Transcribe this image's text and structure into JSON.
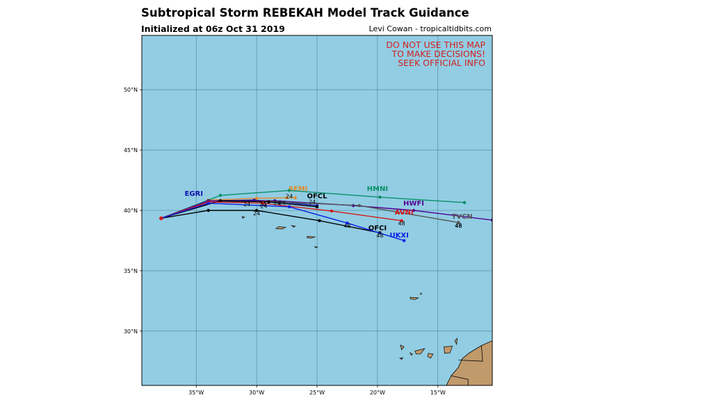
{
  "header": {
    "title": "Subtropical Storm REBEKAH Model Track Guidance",
    "subtitle": "Initialized at 06z Oct 31 2019",
    "credit": "Levi Cowan - tropicaltidbits.com"
  },
  "warning": {
    "lines": [
      "DO NOT USE THIS MAP",
      "TO MAKE DECISIONS!",
      "SEEK OFFICIAL INFO"
    ],
    "color": "#d42020"
  },
  "map": {
    "lon_range": [
      -39.5,
      -10.5
    ],
    "lat_range": [
      25.5,
      54.5
    ],
    "ocean_color": "#92cde3",
    "land_color": "#c19a6b",
    "lon_ticks": [
      {
        "value": -35,
        "label": "35°W"
      },
      {
        "value": -30,
        "label": "30°W"
      },
      {
        "value": -25,
        "label": "25°W"
      },
      {
        "value": -20,
        "label": "20°W"
      },
      {
        "value": -15,
        "label": "15°W"
      }
    ],
    "lat_ticks": [
      {
        "value": 50,
        "label": "50°N"
      },
      {
        "value": 45,
        "label": "45°N"
      },
      {
        "value": 40,
        "label": "40°N"
      },
      {
        "value": 35,
        "label": "35°N"
      },
      {
        "value": 30,
        "label": "30°N"
      }
    ],
    "islands": [
      [
        [
          -31.2,
          39.5
        ],
        [
          -31.0,
          39.45
        ],
        [
          -31.15,
          39.35
        ]
      ],
      [
        [
          -28.2,
          38.65
        ],
        [
          -27.6,
          38.6
        ],
        [
          -27.9,
          38.45
        ],
        [
          -28.4,
          38.5
        ]
      ],
      [
        [
          -27.1,
          38.75
        ],
        [
          -26.8,
          38.7
        ],
        [
          -26.95,
          38.6
        ]
      ],
      [
        [
          -25.8,
          37.85
        ],
        [
          -25.15,
          37.8
        ],
        [
          -25.5,
          37.7
        ],
        [
          -25.85,
          37.75
        ]
      ],
      [
        [
          -25.2,
          37.0
        ],
        [
          -24.95,
          36.95
        ],
        [
          -25.1,
          36.9
        ]
      ],
      [
        [
          -17.3,
          32.8
        ],
        [
          -16.6,
          32.75
        ],
        [
          -16.9,
          32.62
        ],
        [
          -17.25,
          32.65
        ]
      ],
      [
        [
          -16.4,
          33.1
        ],
        [
          -16.25,
          33.05
        ]
      ],
      [
        [
          -18.1,
          28.85
        ],
        [
          -17.8,
          28.7
        ],
        [
          -18.0,
          28.45
        ]
      ],
      [
        [
          -17.3,
          28.2
        ],
        [
          -17.1,
          28.1
        ],
        [
          -17.2,
          28.0
        ]
      ],
      [
        [
          -16.9,
          28.35
        ],
        [
          -16.1,
          28.55
        ],
        [
          -16.45,
          28.1
        ],
        [
          -16.8,
          28.1
        ]
      ],
      [
        [
          -15.8,
          28.15
        ],
        [
          -15.4,
          28.1
        ],
        [
          -15.6,
          27.75
        ],
        [
          -15.85,
          27.9
        ]
      ],
      [
        [
          -14.5,
          28.7
        ],
        [
          -13.8,
          28.75
        ],
        [
          -14.0,
          28.2
        ],
        [
          -14.45,
          28.15
        ]
      ],
      [
        [
          -13.6,
          29.2
        ],
        [
          -13.4,
          29.4
        ],
        [
          -13.45,
          28.9
        ]
      ],
      [
        [
          -18.15,
          27.75
        ],
        [
          -17.9,
          27.8
        ],
        [
          -18.0,
          27.65
        ]
      ]
    ],
    "mainland": [
      [
        -10.5,
        29.2
      ],
      [
        -11.4,
        28.8
      ],
      [
        -12.4,
        28.2
      ],
      [
        -13.0,
        27.7
      ],
      [
        -13.3,
        27.0
      ],
      [
        -13.9,
        26.3
      ],
      [
        -14.3,
        25.5
      ],
      [
        -10.5,
        25.5
      ]
    ],
    "borders": [
      [
        [
          -11.4,
          28.8
        ],
        [
          -11.3,
          27.5
        ],
        [
          -13.3,
          27.6
        ]
      ],
      [
        [
          -13.9,
          26.3
        ],
        [
          -12.5,
          26.0
        ],
        [
          -12.5,
          25.5
        ]
      ]
    ]
  },
  "chart_data": {
    "type": "scatter",
    "title": "Subtropical Storm REBEKAH Model Track Guidance",
    "subtitle": "Initialized at 06z Oct 31 2019",
    "xlabel": "",
    "ylabel": "",
    "xlim": [
      -39.5,
      -10.5
    ],
    "ylim": [
      25.5,
      54.5
    ],
    "grid": true,
    "start": [
      -37.9,
      39.35
    ],
    "series": [
      {
        "name": "EGRI",
        "color": "#1010b0",
        "label_at": [
          -35.2,
          41.2
        ],
        "points": [
          [
            -37.9,
            39.35
          ],
          [
            -34.0,
            40.8
          ],
          [
            -30.2,
            40.85
          ],
          [
            -28.0,
            40.7
          ],
          [
            -25.0,
            40.4
          ]
        ]
      },
      {
        "name": "AEMI",
        "color": "#e38a2b",
        "label_at": [
          -26.6,
          41.6
        ],
        "points": [
          [
            -37.9,
            39.35
          ],
          [
            -34.0,
            40.85
          ],
          [
            -30.0,
            41.0
          ],
          [
            -27.5,
            41.05
          ],
          [
            -26.8,
            41.05
          ]
        ]
      },
      {
        "name": "HMNI",
        "color": "#089068",
        "label_at": [
          -20.0,
          41.6
        ],
        "points": [
          [
            -37.9,
            39.35
          ],
          [
            -33.0,
            41.25
          ],
          [
            -27.3,
            41.65
          ],
          [
            -19.8,
            41.1
          ],
          [
            -12.8,
            40.65
          ]
        ]
      },
      {
        "name": "HWFI",
        "color": "#500095",
        "label_at": [
          -17.0,
          40.4
        ],
        "points": [
          [
            -37.9,
            39.35
          ],
          [
            -34.0,
            40.8
          ],
          [
            -28.5,
            40.8
          ],
          [
            -22.0,
            40.4
          ],
          [
            -17.0,
            40.0
          ],
          [
            -10.5,
            39.2
          ]
        ]
      },
      {
        "name": "TVCN",
        "color": "#555555",
        "label_at": [
          -13.0,
          39.3
        ],
        "points": [
          [
            -37.9,
            39.35
          ],
          [
            -34.0,
            40.7
          ],
          [
            -29.0,
            40.75
          ],
          [
            -21.5,
            40.4
          ],
          [
            -13.3,
            39.0
          ]
        ]
      },
      {
        "name": "OFCL",
        "color": "#000000",
        "label_at": [
          -25.0,
          41.0
        ],
        "points": [
          [
            -37.9,
            39.35
          ],
          [
            -33.0,
            40.8
          ],
          [
            -29.0,
            40.7
          ],
          [
            -25.0,
            40.3
          ]
        ]
      },
      {
        "name": "AVNI",
        "color": "#d41818",
        "label_at": [
          -17.8,
          39.65
        ],
        "points": [
          [
            -37.9,
            39.35
          ],
          [
            -34.0,
            40.7
          ],
          [
            -29.5,
            40.6
          ],
          [
            -23.8,
            39.95
          ],
          [
            -18.0,
            39.15
          ]
        ]
      },
      {
        "name": "OFCI",
        "color": "#000000",
        "label_at": [
          -20.0,
          38.35
        ],
        "points": [
          [
            -37.9,
            39.35
          ],
          [
            -34.0,
            40.0
          ],
          [
            -30.0,
            40.0
          ],
          [
            -24.8,
            39.15
          ],
          [
            -19.8,
            38.15
          ]
        ]
      },
      {
        "name": "UKXI",
        "color": "#0a1ee8",
        "label_at": [
          -18.2,
          37.75
        ],
        "points": [
          [
            -37.9,
            39.35
          ],
          [
            -34.0,
            40.6
          ],
          [
            -27.3,
            40.3
          ],
          [
            -22.5,
            38.95
          ],
          [
            -17.8,
            37.5
          ]
        ]
      }
    ],
    "hour_labels": [
      {
        "text": "24",
        "at": [
          -30.8,
          40.35
        ]
      },
      {
        "text": "24",
        "at": [
          -29.5,
          40.35
        ]
      },
      {
        "text": "24",
        "at": [
          -29.4,
          40.2
        ]
      },
      {
        "text": "24",
        "at": [
          -28.3,
          40.45
        ]
      },
      {
        "text": "24",
        "at": [
          -27.9,
          40.45
        ]
      },
      {
        "text": "24",
        "at": [
          -30.0,
          39.6
        ]
      },
      {
        "text": "24",
        "at": [
          -27.3,
          41.0
        ]
      },
      {
        "text": "24",
        "at": [
          -25.4,
          40.55
        ]
      },
      {
        "text": "48",
        "at": [
          -22.5,
          38.55
        ]
      },
      {
        "text": "48",
        "at": [
          -19.8,
          37.75
        ]
      },
      {
        "text": "48",
        "at": [
          -18.0,
          38.75
        ]
      },
      {
        "text": "48",
        "at": [
          -13.3,
          38.6
        ]
      },
      {
        "text": "48",
        "at": [
          -13.3,
          38.55
        ]
      }
    ]
  }
}
